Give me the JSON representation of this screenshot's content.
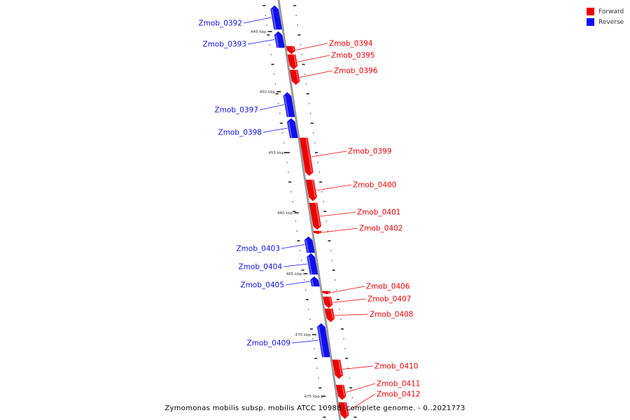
{
  "colors": {
    "forward": "#ee0000",
    "reverse": "#1010ee",
    "backbone": "#9a9a9a"
  },
  "legend": {
    "items": [
      {
        "label": "Forward",
        "color": "#ee0000"
      },
      {
        "label": "Reverse",
        "color": "#1010ee"
      }
    ]
  },
  "caption": "Zymomonas mobilis subsp. mobilis ATCC 10988, complete genome. - 0..2021773",
  "ruler": [
    "445 kbp",
    "450 kbp",
    "455 kbp",
    "460 kbp",
    "465 kbp",
    "470 kbp",
    "475 kbp"
  ],
  "genes": [
    {
      "id": "Zmob_0392",
      "strand": "reverse"
    },
    {
      "id": "Zmob_0393",
      "strand": "reverse"
    },
    {
      "id": "Zmob_0394",
      "strand": "forward"
    },
    {
      "id": "Zmob_0395",
      "strand": "forward"
    },
    {
      "id": "Zmob_0396",
      "strand": "forward"
    },
    {
      "id": "Zmob_0397",
      "strand": "reverse"
    },
    {
      "id": "Zmob_0398",
      "strand": "reverse"
    },
    {
      "id": "Zmob_0399",
      "strand": "forward"
    },
    {
      "id": "Zmob_0400",
      "strand": "forward"
    },
    {
      "id": "Zmob_0401",
      "strand": "forward"
    },
    {
      "id": "Zmob_0402",
      "strand": "forward"
    },
    {
      "id": "Zmob_0403",
      "strand": "reverse"
    },
    {
      "id": "Zmob_0404",
      "strand": "reverse"
    },
    {
      "id": "Zmob_0405",
      "strand": "reverse"
    },
    {
      "id": "Zmob_0406",
      "strand": "forward"
    },
    {
      "id": "Zmob_0407",
      "strand": "forward"
    },
    {
      "id": "Zmob_0408",
      "strand": "forward"
    },
    {
      "id": "Zmob_0409",
      "strand": "reverse"
    },
    {
      "id": "Zmob_0410",
      "strand": "forward"
    },
    {
      "id": "Zmob_0411",
      "strand": "forward"
    },
    {
      "id": "Zmob_0412",
      "strand": "forward"
    }
  ]
}
